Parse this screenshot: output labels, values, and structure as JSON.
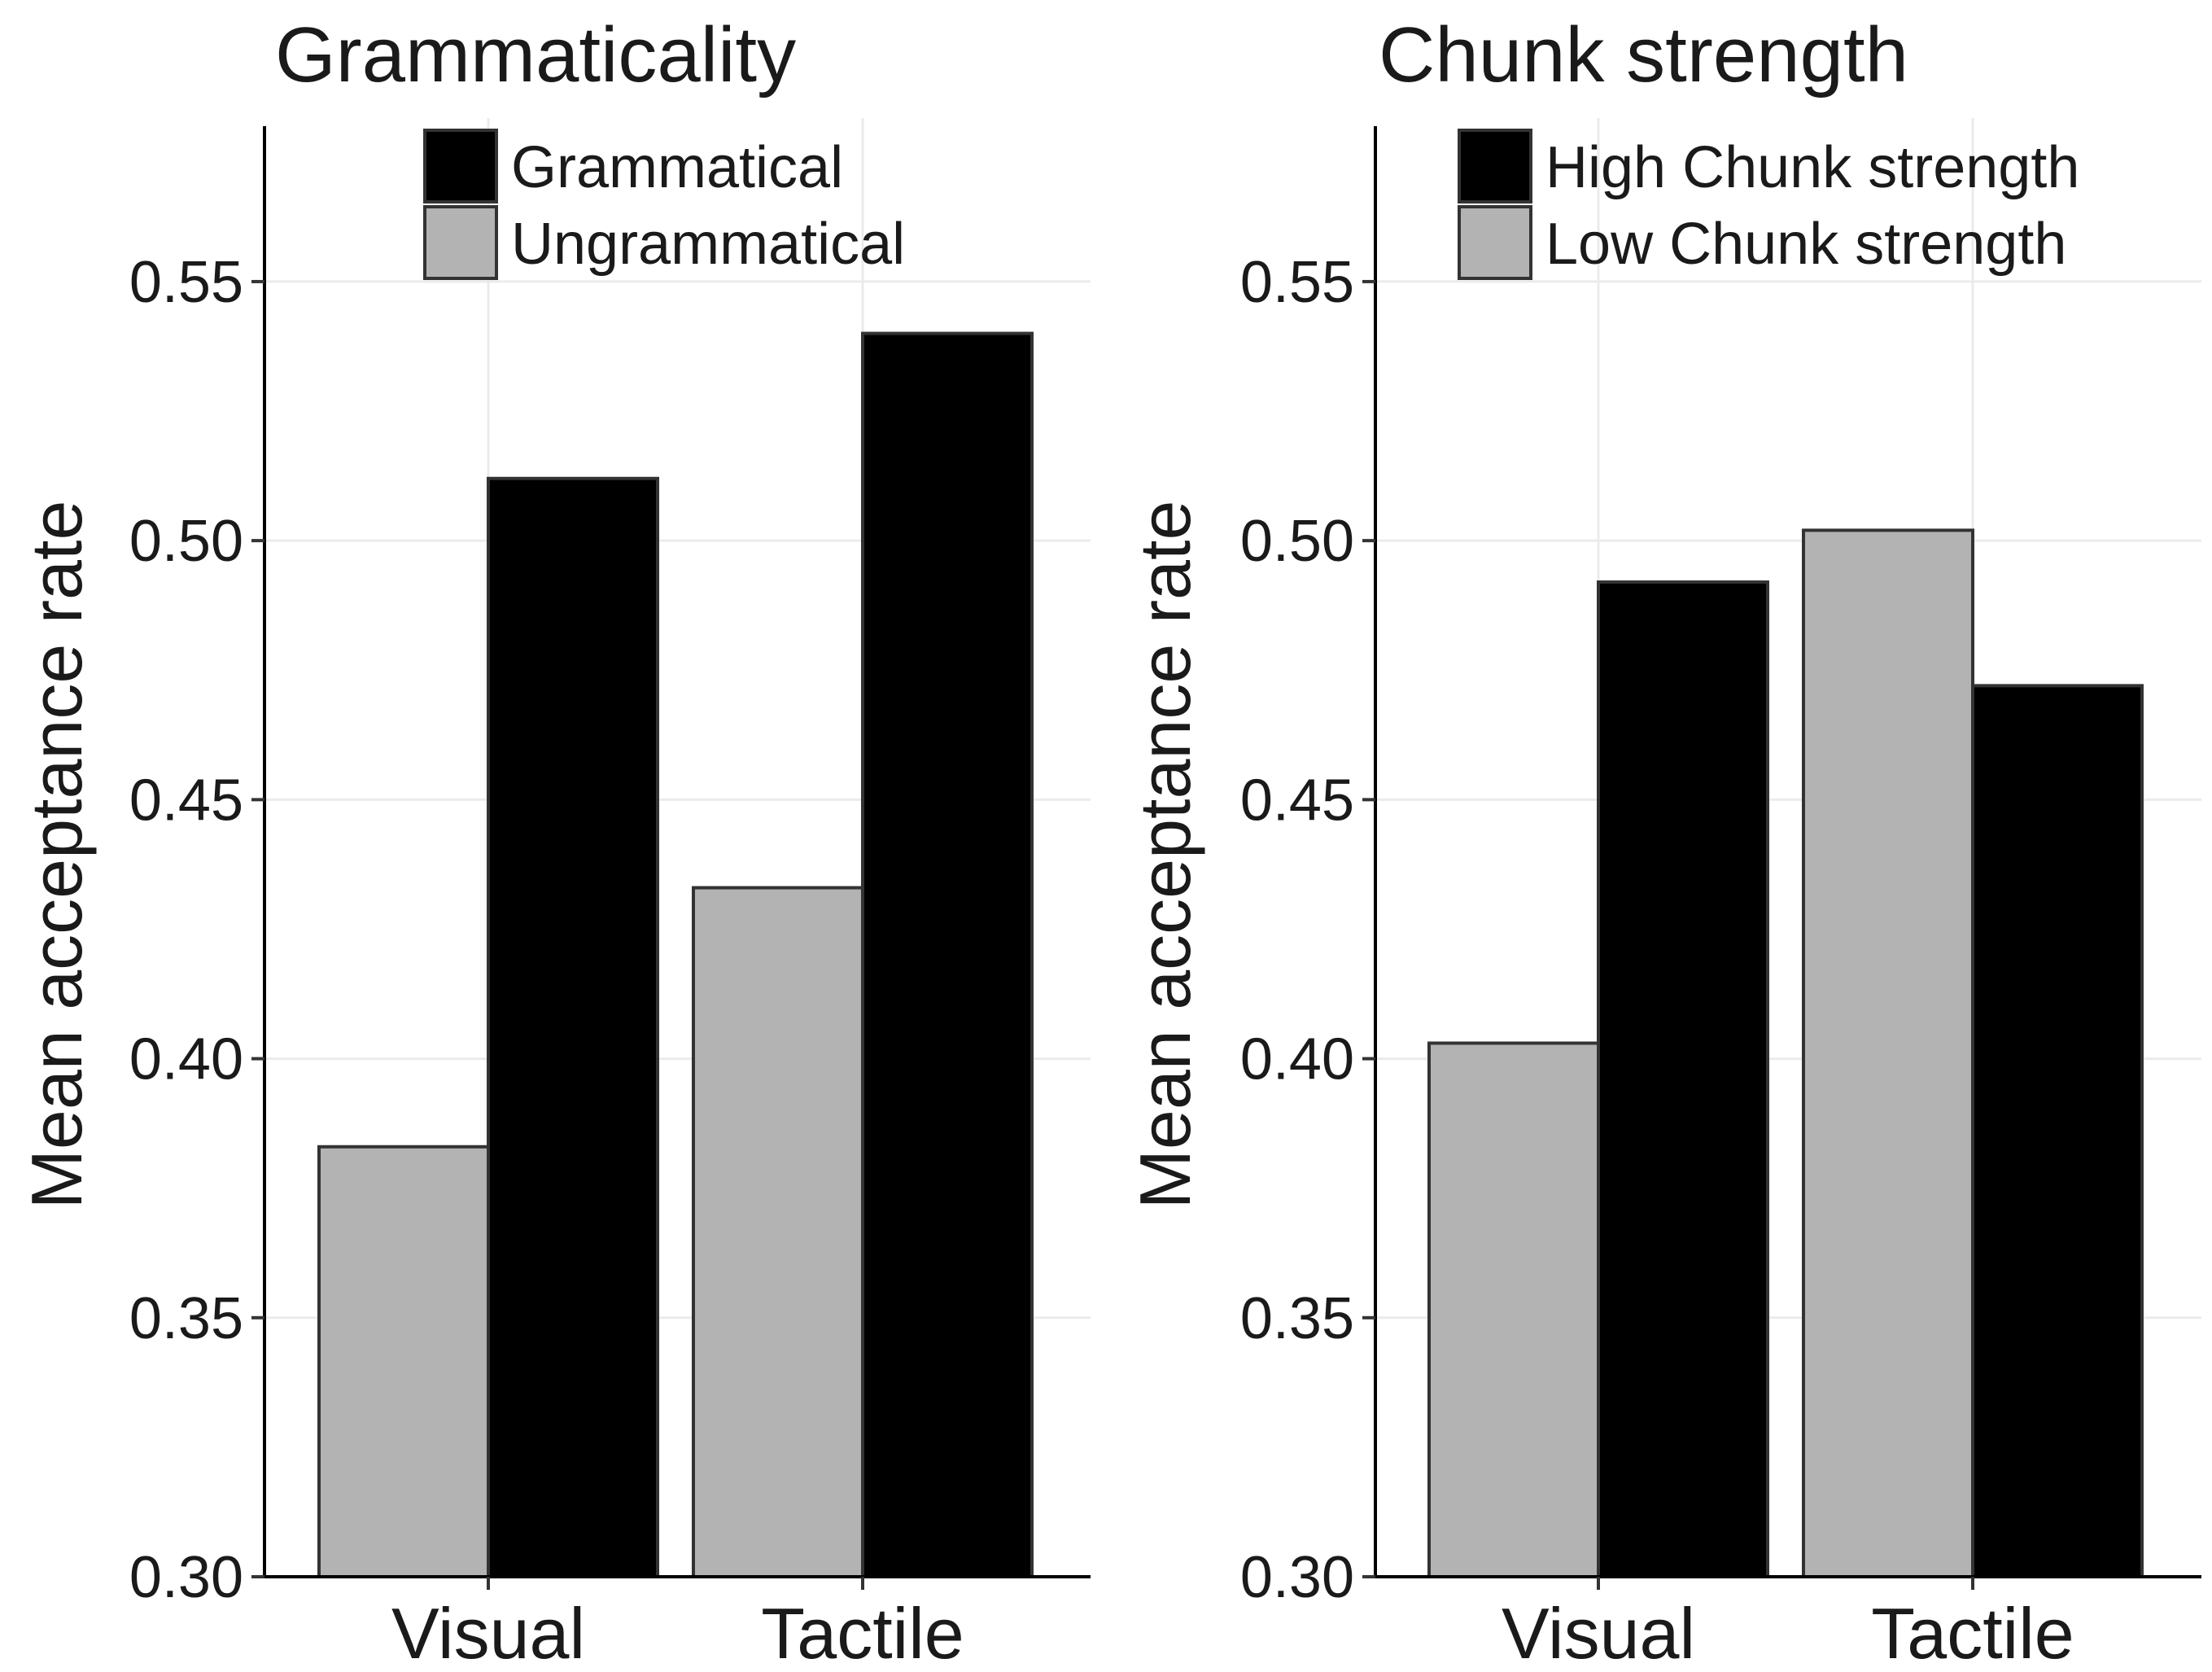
{
  "chart_data": [
    {
      "type": "bar",
      "title": "Grammaticality",
      "xlabel": "",
      "ylabel": "Mean acceptance rate",
      "categories": [
        "Visual",
        "Tactile"
      ],
      "ylim": [
        0.3,
        0.58
      ],
      "yticks": [
        "0.30",
        "0.35",
        "0.40",
        "0.45",
        "0.50",
        "0.55"
      ],
      "grid": true,
      "legend_position": "top",
      "legend": [
        {
          "label": "Grammatical",
          "color": "#000000"
        },
        {
          "label": "Ungrammatical",
          "color": "#b3b3b3"
        }
      ],
      "series": [
        {
          "name": "Ungrammatical",
          "color": "#b3b3b3",
          "values": [
            0.383,
            0.433
          ]
        },
        {
          "name": "Grammatical",
          "color": "#000000",
          "values": [
            0.512,
            0.54
          ]
        }
      ]
    },
    {
      "type": "bar",
      "title": "Chunk strength",
      "xlabel": "",
      "ylabel": "Mean acceptance rate",
      "categories": [
        "Visual",
        "Tactile"
      ],
      "ylim": [
        0.3,
        0.58
      ],
      "yticks": [
        "0.30",
        "0.35",
        "0.40",
        "0.45",
        "0.50",
        "0.55"
      ],
      "grid": true,
      "legend_position": "top",
      "legend": [
        {
          "label": "High Chunk strength",
          "color": "#000000"
        },
        {
          "label": "Low Chunk strength",
          "color": "#b3b3b3"
        }
      ],
      "series": [
        {
          "name": "Low Chunk strength",
          "color": "#b3b3b3",
          "values": [
            0.403,
            0.502
          ]
        },
        {
          "name": "High Chunk strength",
          "color": "#000000",
          "values": [
            0.492,
            0.472
          ]
        }
      ]
    }
  ]
}
